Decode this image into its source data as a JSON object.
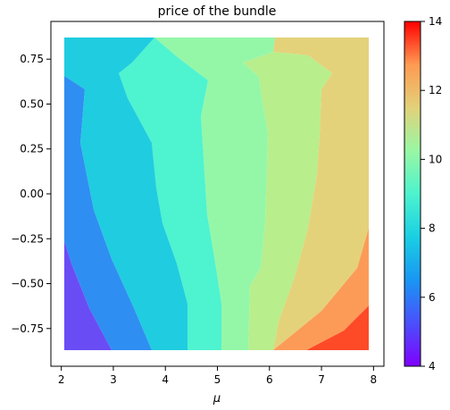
{
  "chart_data": {
    "type": "heatmap",
    "title": "price of the bundle",
    "xlabel": "μ",
    "ylabel": "",
    "xlim": [
      1.8,
      8.2
    ],
    "ylim": [
      -0.96,
      0.96
    ],
    "x_range": [
      2.0,
      8.0
    ],
    "y_range": [
      -0.9,
      0.9
    ],
    "x_ticks": [
      "2",
      "3",
      "4",
      "5",
      "6",
      "7",
      "8"
    ],
    "y_ticks": [
      "−0.75",
      "−0.50",
      "−0.25",
      "0.00",
      "0.25",
      "0.50",
      "0.75"
    ],
    "colorbar": {
      "colormap": "rainbow",
      "range": [
        4,
        14
      ],
      "ticks": [
        "4",
        "6",
        "8",
        "10",
        "12",
        "14"
      ]
    },
    "legend": "none",
    "grid": false,
    "regions": [
      {
        "price": 4.5,
        "color": "#6a4cf5",
        "description": "bottom-left corner wedge"
      },
      {
        "price": 5.7,
        "color": "#2f8ef2",
        "description": "left band"
      },
      {
        "price": 6.9,
        "color": "#20cce0",
        "description": "center-left band"
      },
      {
        "price": 8.0,
        "color": "#4ef3d0",
        "description": "center band"
      },
      {
        "price": 8.8,
        "color": "#94f7a8",
        "description": "center-right band"
      },
      {
        "price": 10.3,
        "color": "#b8ee8c",
        "description": "right-center band"
      },
      {
        "price": 11.2,
        "color": "#e4d27a",
        "description": "right band"
      },
      {
        "price": 12.5,
        "color": "#fc9b58",
        "description": "bottom-right wedge"
      },
      {
        "price": 13.5,
        "color": "#ff4a28",
        "description": "bottom-right corner"
      }
    ]
  }
}
